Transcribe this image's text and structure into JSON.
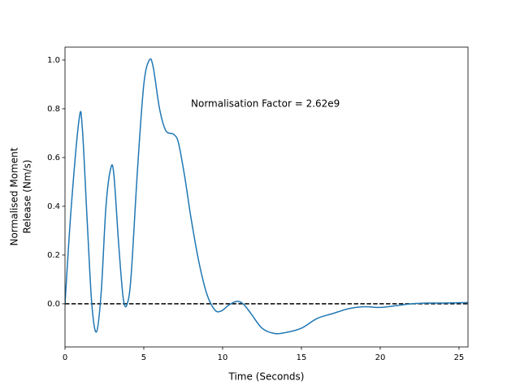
{
  "chart_data": {
    "type": "line",
    "xlabel": "Time (Seconds)",
    "ylabel": [
      "Normalised Moment",
      "Release (Nm/s)"
    ],
    "annotation": "Normalisation Factor = 2.62e9",
    "x": [
      0,
      0.4,
      0.9,
      1.1,
      1.4,
      1.7,
      2.0,
      2.3,
      2.6,
      2.9,
      3.1,
      3.4,
      3.7,
      3.95,
      4.2,
      4.6,
      5.0,
      5.35,
      5.6,
      6.0,
      6.4,
      6.9,
      7.2,
      7.6,
      8.0,
      8.5,
      9.0,
      9.5,
      9.9,
      10.4,
      10.9,
      11.3,
      11.8,
      12.5,
      13.3,
      14.0,
      15.0,
      16.0,
      17.0,
      18.0,
      19.0,
      20.0,
      21.0,
      22.0,
      23.0,
      24.0,
      25.57
    ],
    "series": [
      {
        "name": "Normalised Moment Release",
        "color": "#1f77b4",
        "values": [
          0,
          0.4,
          0.76,
          0.72,
          0.35,
          0.0,
          -0.115,
          0.05,
          0.4,
          0.555,
          0.53,
          0.25,
          0.02,
          0.0,
          0.12,
          0.55,
          0.9,
          1.0,
          0.97,
          0.8,
          0.71,
          0.695,
          0.66,
          0.52,
          0.35,
          0.17,
          0.04,
          -0.025,
          -0.03,
          -0.005,
          0.01,
          0.0,
          -0.04,
          -0.1,
          -0.122,
          -0.118,
          -0.1,
          -0.06,
          -0.04,
          -0.02,
          -0.012,
          -0.015,
          -0.008,
          0.0,
          0.003,
          0.003,
          0.005
        ]
      }
    ],
    "reference_line": {
      "value": 0,
      "color": "#000000",
      "style": "dashed"
    },
    "xlim": [
      0,
      25.57
    ],
    "ylim": [
      -0.177,
      1.053
    ],
    "xticks": [
      0,
      5,
      10,
      15,
      20,
      25
    ],
    "yticks": [
      {
        "value": 0,
        "label": "0.0"
      },
      0.2,
      0.4,
      0.6,
      0.8,
      {
        "value": 1,
        "label": "1.0"
      }
    ],
    "grid": false
  }
}
